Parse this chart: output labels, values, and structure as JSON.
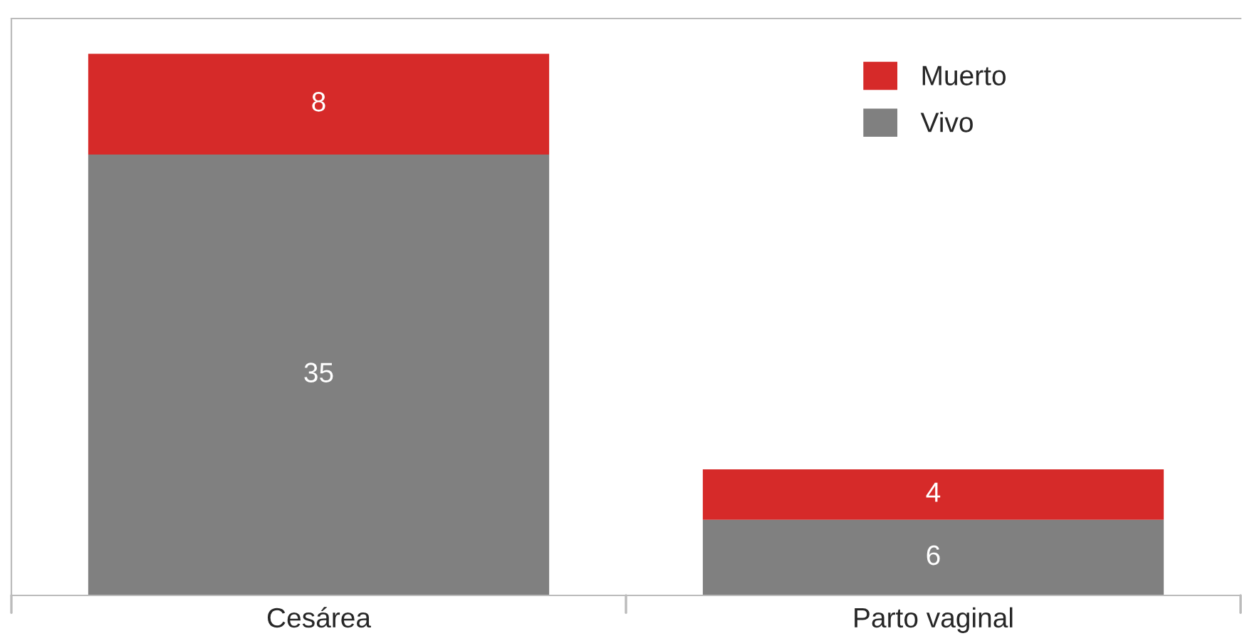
{
  "chart_data": {
    "type": "bar",
    "stacked": true,
    "categories": [
      "Cesárea",
      "Parto vaginal"
    ],
    "series": [
      {
        "name": "Vivo",
        "color": "#808080",
        "values": [
          35,
          6
        ]
      },
      {
        "name": "Muerto",
        "color": "#d62a29",
        "values": [
          8,
          4
        ]
      }
    ],
    "data_labels": true,
    "legend": "top right",
    "grid": false
  }
}
